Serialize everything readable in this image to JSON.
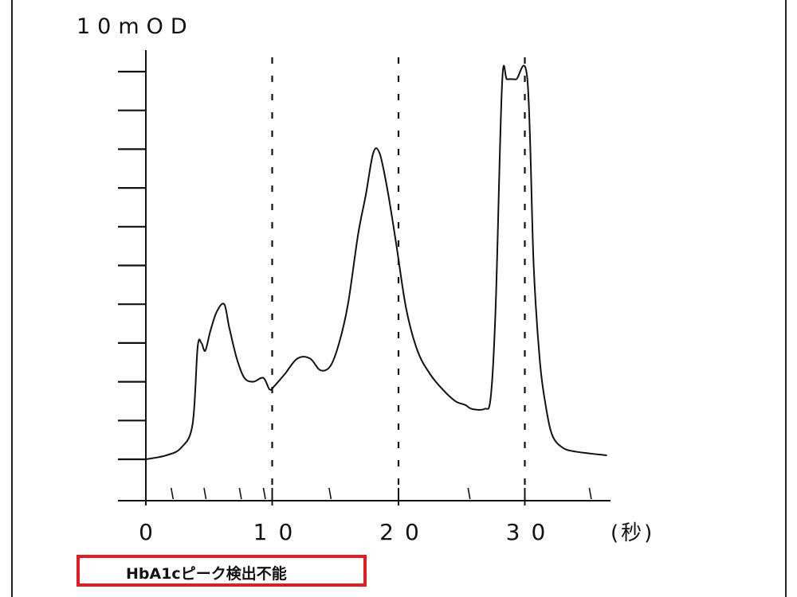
{
  "chart_data": {
    "type": "line",
    "ylabel": "10mOD",
    "xunit": "(秒)",
    "xlim": [
      0,
      36.5
    ],
    "ylim": [
      0,
      10
    ],
    "x_ticks_labeled": [
      0,
      10,
      20,
      30
    ],
    "x_tick_labels": [
      "0",
      "10",
      "20",
      "30"
    ],
    "y_ticks": [
      0,
      1,
      2,
      3,
      4,
      5,
      6,
      7,
      8,
      9,
      10
    ],
    "grid_x": [
      10,
      20,
      30
    ],
    "peak_marks_x": [
      2.1,
      4.7,
      7.5,
      9.4,
      14.6,
      25.6,
      35.2
    ],
    "series": [
      {
        "x": [
          0,
          1.6,
          2.8,
          3.7,
          4.1,
          4.4,
          4.7,
          5.1,
          5.6,
          6.2,
          6.6,
          7.2,
          7.8,
          8.5,
          9.3,
          9.8,
          10.2,
          11.0,
          12.0,
          13.0,
          13.8,
          14.6,
          15.3,
          16.0,
          16.8,
          17.4,
          18.0,
          18.5,
          19.1,
          19.8,
          20.6,
          21.5,
          22.5,
          23.5,
          24.5,
          25.3,
          25.8,
          26.8,
          27.3,
          27.7,
          28.2,
          28.6,
          29.3,
          30.2,
          30.7,
          31.2,
          31.7,
          32.2,
          33.0,
          34.0,
          36.5
        ],
        "y": [
          0.0,
          0.1,
          0.3,
          0.9,
          2.9,
          3.0,
          2.8,
          3.3,
          3.8,
          4.0,
          3.4,
          2.6,
          2.1,
          2.0,
          2.1,
          1.8,
          1.9,
          2.2,
          2.6,
          2.6,
          2.3,
          2.4,
          3.0,
          4.0,
          5.8,
          6.8,
          7.9,
          7.9,
          7.0,
          5.6,
          3.9,
          2.8,
          2.2,
          1.8,
          1.5,
          1.4,
          1.3,
          1.3,
          1.6,
          4.0,
          9.7,
          9.8,
          9.8,
          9.8,
          5.0,
          2.5,
          1.3,
          0.6,
          0.3,
          0.2,
          0.1
        ]
      }
    ]
  },
  "annotation": {
    "label": "HbA1cピーク検出不能",
    "border_color": "#e31b23"
  }
}
